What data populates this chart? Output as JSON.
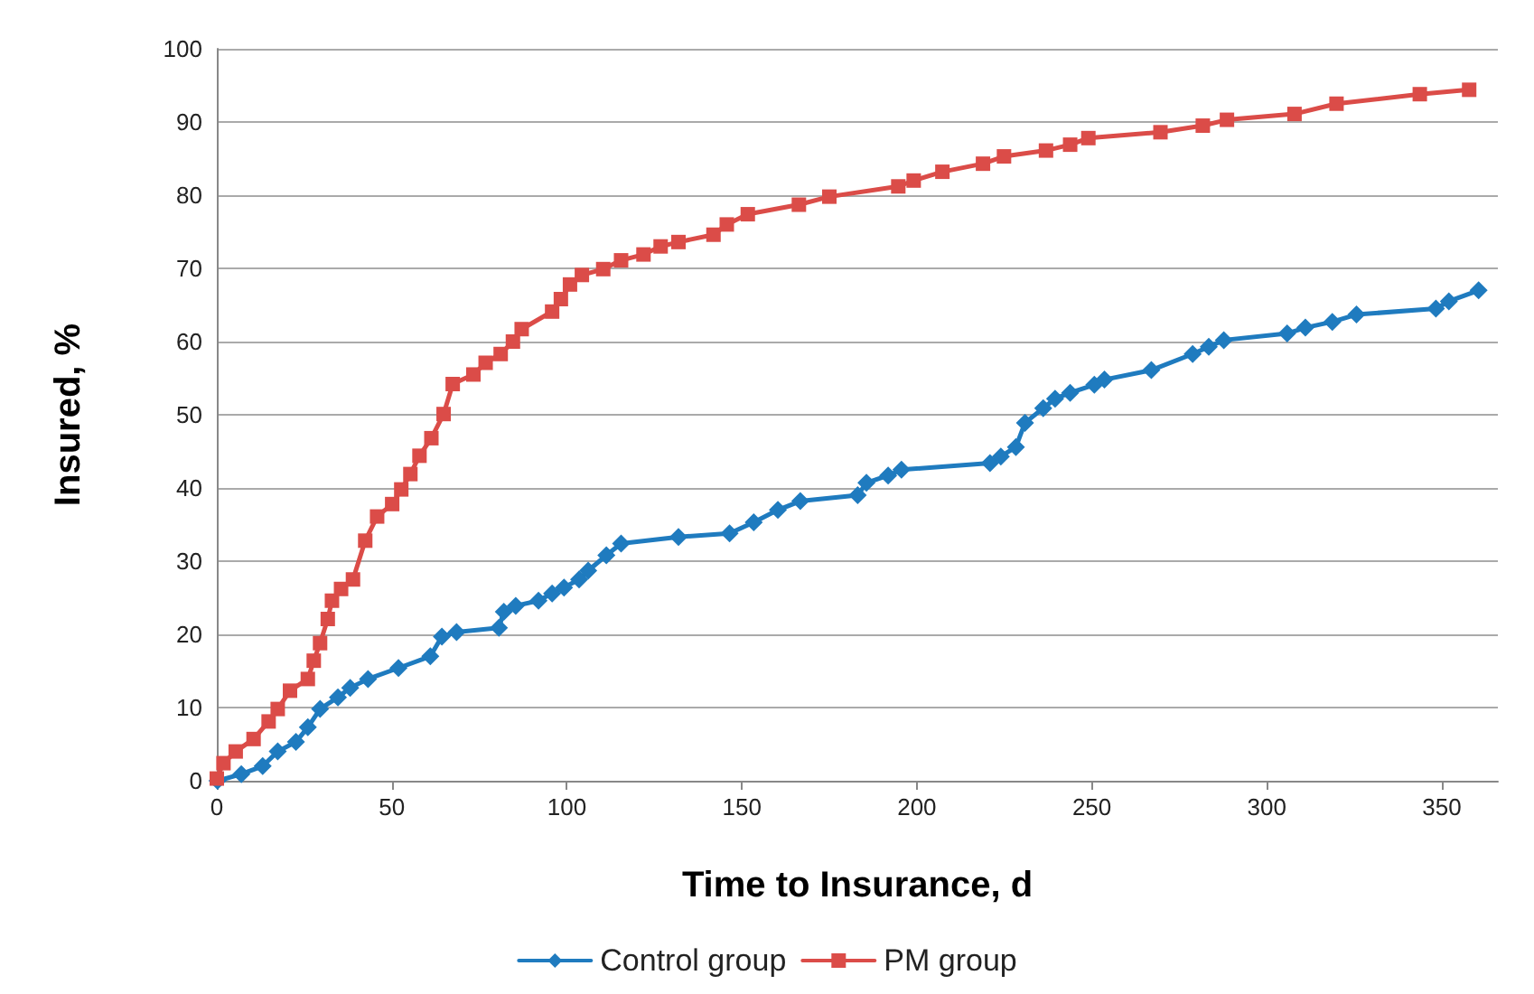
{
  "chart_data": {
    "type": "line",
    "xlabel": "Time to Insurance, d",
    "ylabel": "Insured, %",
    "xlim": [
      0,
      366
    ],
    "xticks": [
      0,
      50,
      100,
      150,
      200,
      250,
      300,
      350
    ],
    "ylim": [
      0,
      100
    ],
    "yticks": [
      0,
      10,
      20,
      30,
      40,
      50,
      60,
      70,
      80,
      90,
      100
    ],
    "grid": "y",
    "legend": "bottom",
    "line_style": "solid",
    "series": [
      {
        "name": "Control group",
        "color": "#1f7bbf",
        "marker": "diamond",
        "x": [
          0.2,
          7,
          13.1,
          17.4,
          22.6,
          26,
          29.5,
          34.6,
          38.1,
          43.2,
          51.9,
          61,
          64.3,
          68.5,
          80.6,
          82,
          85.4,
          91.9,
          95.8,
          99.2,
          103.5,
          106.1,
          111.3,
          115.5,
          131.9,
          146.5,
          153.4,
          160.3,
          166.7,
          183.1,
          185.6,
          191.8,
          195.6,
          220.9,
          224,
          228.3,
          230.9,
          236.1,
          239.5,
          243.8,
          250.7,
          253.6,
          267,
          278.8,
          283.4,
          287.7,
          305.8,
          311,
          318.7,
          325.6,
          348.3,
          352,
          360.5
        ],
        "values": [
          0,
          0.9,
          2,
          4,
          5.3,
          7.3,
          9.8,
          11.4,
          12.7,
          13.9,
          15.4,
          17,
          19.7,
          20.3,
          20.9,
          23.1,
          23.9,
          24.6,
          25.6,
          26.4,
          27.5,
          28.7,
          30.8,
          32.4,
          33.3,
          33.8,
          35.3,
          37,
          38.2,
          39,
          40.7,
          41.7,
          42.5,
          43.4,
          44.3,
          45.6,
          48.9,
          50.9,
          52.2,
          53,
          54.1,
          54.8,
          56.1,
          58.3,
          59.3,
          60.2,
          61.1,
          61.9,
          62.7,
          63.7,
          64.5,
          65.5,
          67
        ]
      },
      {
        "name": "PM group",
        "color": "#db4c48",
        "marker": "square",
        "x": [
          0,
          1.9,
          5.4,
          10.5,
          14.8,
          17.4,
          20.9,
          26,
          27.7,
          29.5,
          31.7,
          32.9,
          35.5,
          38.9,
          42.4,
          45.8,
          50.1,
          52.7,
          55.3,
          57.9,
          61.3,
          64.8,
          67.4,
          73.3,
          76.8,
          81.1,
          84.6,
          87.1,
          95.8,
          98.3,
          100.9,
          104.3,
          110.4,
          115.5,
          121.9,
          126.8,
          131.9,
          141.9,
          145.7,
          151.7,
          166.3,
          175,
          194.7,
          199.1,
          207.3,
          218.9,
          224.9,
          236.9,
          243.8,
          249,
          269.6,
          281.7,
          288.6,
          307.9,
          319.9,
          343.7,
          357.8
        ],
        "values": [
          0.3,
          2.4,
          4,
          5.7,
          8.1,
          9.8,
          12.3,
          13.9,
          16.4,
          18.8,
          22.1,
          24.6,
          26.2,
          27.5,
          32.8,
          36.1,
          37.8,
          39.8,
          41.9,
          44.4,
          46.8,
          50.1,
          54.2,
          55.5,
          57.1,
          58.3,
          60,
          61.7,
          64.1,
          65.8,
          67.8,
          69.1,
          69.9,
          71.1,
          71.9,
          73,
          73.6,
          74.6,
          76,
          77.4,
          78.7,
          79.8,
          81.2,
          82,
          83.2,
          84.3,
          85.3,
          86.1,
          86.9,
          87.8,
          88.6,
          89.5,
          90.3,
          91.1,
          92.5,
          93.8,
          94.4
        ]
      }
    ]
  }
}
